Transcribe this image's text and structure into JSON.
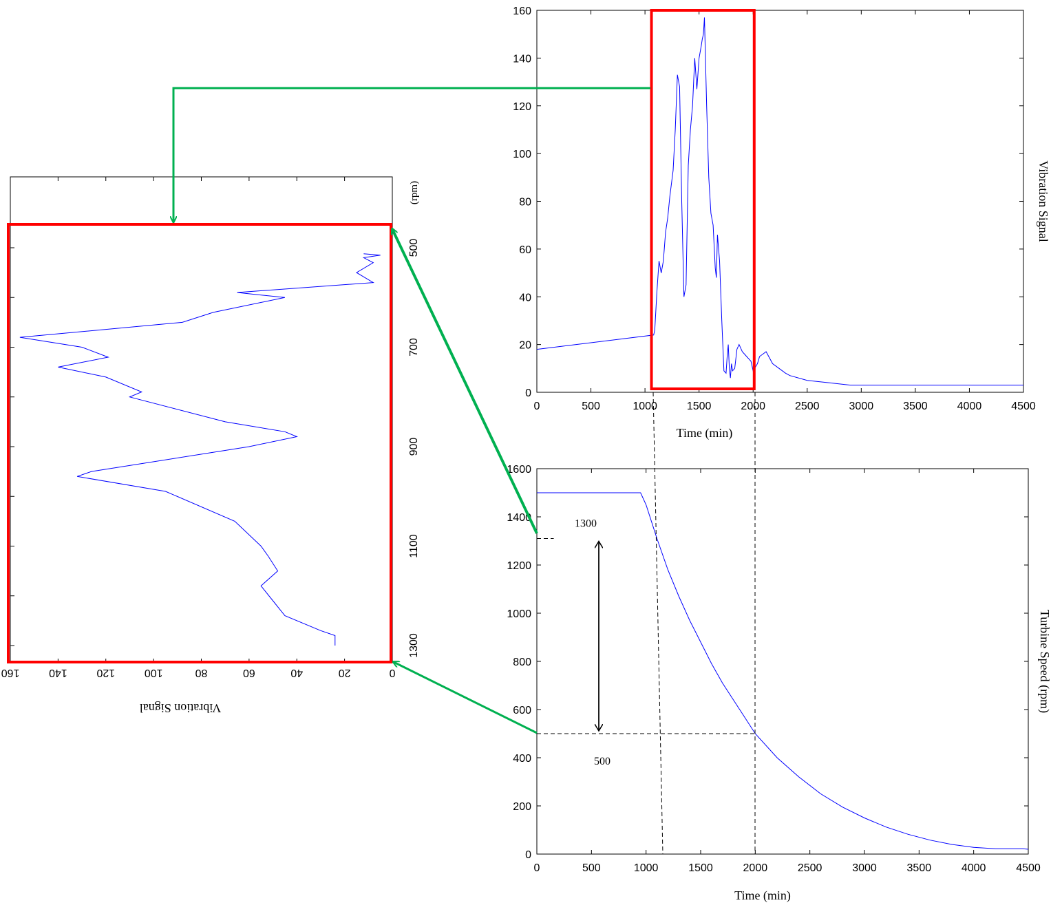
{
  "chart_data": [
    {
      "id": "vibration_vs_time",
      "type": "line",
      "xlabel": "Time (min)",
      "ylabel": "Vibration Signal",
      "xlim": [
        0,
        4500
      ],
      "ylim": [
        0,
        160
      ],
      "xticks": [
        0,
        500,
        1000,
        1500,
        2000,
        2500,
        3000,
        3500,
        4000,
        4500
      ],
      "yticks": [
        0,
        20,
        40,
        60,
        80,
        100,
        120,
        140,
        160
      ],
      "grid": false,
      "series_color": "#0000ff",
      "highlight_color": "#ff0000",
      "highlight_x_range": [
        1060,
        2010
      ],
      "series": [
        {
          "x": [
            0,
            1080,
            1090,
            1110,
            1130,
            1150,
            1170,
            1190,
            1210,
            1230,
            1260,
            1280,
            1300,
            1320,
            1340,
            1360,
            1380,
            1390,
            1400,
            1420,
            1440,
            1460,
            1480,
            1500,
            1520,
            1530,
            1540,
            1550,
            1570,
            1590,
            1610,
            1630,
            1650,
            1660,
            1670,
            1690,
            1710,
            1730,
            1750,
            1760,
            1770,
            1780,
            1790,
            1800,
            1810,
            1830,
            1850,
            1870,
            1880,
            1900,
            1920,
            1940,
            1960,
            1980,
            2000,
            2040,
            2060,
            2090,
            2120,
            2180,
            2240,
            2300,
            2340,
            2500,
            2700,
            2900,
            2990,
            3010,
            3300,
            3600,
            3850,
            4150,
            4500
          ],
          "y": [
            18,
            24,
            26,
            42,
            55,
            50,
            55,
            67,
            73,
            82,
            93,
            110,
            133,
            128,
            80,
            40,
            45,
            70,
            95,
            110,
            120,
            140,
            127,
            140,
            145,
            148,
            150,
            157,
            120,
            90,
            75,
            70,
            52,
            48,
            66,
            55,
            30,
            9,
            8,
            15,
            20,
            10,
            6,
            12,
            9,
            10,
            18,
            20,
            19,
            17,
            16,
            15,
            14,
            13,
            9,
            12,
            15,
            16,
            17,
            12,
            10,
            8,
            7,
            5,
            4,
            3,
            3,
            3,
            3,
            3,
            3,
            3,
            3
          ]
        }
      ]
    },
    {
      "id": "turbine_speed_vs_time",
      "type": "line",
      "xlabel": "Time (min)",
      "ylabel": "Turbine Speed (rpm)",
      "xlim": [
        0,
        4500
      ],
      "ylim": [
        0,
        1600
      ],
      "xticks": [
        0,
        500,
        1000,
        1500,
        2000,
        2500,
        3000,
        3500,
        4000,
        4500
      ],
      "yticks": [
        0,
        200,
        400,
        600,
        800,
        1000,
        1200,
        1400,
        1600
      ],
      "grid": false,
      "series_color": "#0000ff",
      "annotations": {
        "upper_label": "1300",
        "lower_label": "500"
      },
      "reference_lines": {
        "upper_speed": 1310,
        "lower_speed": 500,
        "start_time": 1100,
        "end_time": 2000
      },
      "series": [
        {
          "x": [
            0,
            950,
            1000,
            1050,
            1100,
            1200,
            1300,
            1400,
            1500,
            1600,
            1700,
            1800,
            1900,
            2000,
            2200,
            2400,
            2600,
            2800,
            3000,
            3200,
            3400,
            3600,
            3800,
            4000,
            4200,
            4450,
            4500
          ],
          "y": [
            1500,
            1500,
            1450,
            1380,
            1310,
            1180,
            1070,
            970,
            880,
            790,
            710,
            640,
            570,
            500,
            400,
            320,
            250,
            195,
            150,
            112,
            82,
            58,
            40,
            28,
            22,
            22,
            20
          ]
        }
      ]
    },
    {
      "id": "vibration_vs_speed_rotated",
      "type": "line",
      "orientation": "rotated-180",
      "xlabel": "Vibration Signal",
      "ylabel": "(rpm)",
      "xlim": [
        0,
        160
      ],
      "ylim": [
        400,
        1350
      ],
      "xticks": [
        0,
        20,
        40,
        60,
        80,
        100,
        120,
        140,
        160
      ],
      "yticks": [
        500,
        700,
        900,
        1100,
        1300
      ],
      "grid": false,
      "series_color": "#0000ff",
      "series": [
        {
          "rpm": [
            1300,
            1280,
            1270,
            1240,
            1210,
            1180,
            1150,
            1120,
            1100,
            1050,
            990,
            960,
            950,
            900,
            880,
            870,
            850,
            800,
            790,
            760,
            740,
            720,
            700,
            680,
            650,
            630,
            600,
            590,
            570,
            550,
            530,
            520,
            515,
            512
          ],
          "vibration": [
            24,
            24,
            30,
            45,
            50,
            55,
            48,
            52,
            55,
            66,
            95,
            132,
            126,
            60,
            40,
            45,
            70,
            110,
            105,
            120,
            140,
            119,
            130,
            156,
            88,
            75,
            45,
            65,
            8,
            15,
            8,
            12,
            5,
            12
          ]
        }
      ]
    }
  ]
}
